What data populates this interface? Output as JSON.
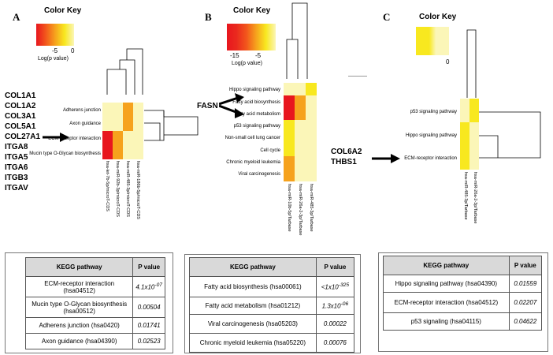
{
  "panels": {
    "a": {
      "letter": "A",
      "color_key": {
        "title": "Color Key",
        "ticks": [
          "-5",
          "0"
        ],
        "axis_label": "Log(p value)"
      },
      "genes": [
        "COL1A1",
        "COL1A2",
        "COL3A1",
        "COL5A1",
        "COL27A1",
        "ITGA8",
        "ITGA5",
        "ITGA6",
        "ITGB3",
        "ITGAV"
      ],
      "row_labels": [
        "Adherens junction",
        "Axon guidance",
        "ECM-receptor interaction",
        "Mucin type O-Glycan biosynthesis"
      ],
      "col_labels": [
        "hsa-let-7b-5p/microT-CDS",
        "hsa-miR-92b-3p/microT-CDS",
        "hsa-miR-485-3p/microT-CDS",
        "hsa-miR-186b-5p/microT-CDS"
      ],
      "table": {
        "headers": [
          "KEGG pathway",
          "P value"
        ],
        "rows": [
          {
            "pathway": "ECM-receptor interaction (hsa04512)",
            "p": "4.1x10",
            "exp": "-07"
          },
          {
            "pathway": "Mucin type O-Glycan biosynthesis (hsa00512)",
            "p": "0.00504",
            "exp": ""
          },
          {
            "pathway": "Adherens junction (hsa0420)",
            "p": "0.01741",
            "exp": ""
          },
          {
            "pathway": "Axon guidance (hsa04390)",
            "p": "0.02523",
            "exp": ""
          }
        ]
      }
    },
    "b": {
      "letter": "B",
      "color_key": {
        "title": "Color Key",
        "ticks": [
          "-15",
          "-5"
        ],
        "axis_label": "Log(p value)"
      },
      "gene": "FASN",
      "row_labels": [
        "Hippo signaling pathway",
        "Fatty acid biosynthesis",
        "Fatty acid metabolism",
        "p53 signaling pathway",
        "Non-small cell lung cancer",
        "Cell cycle",
        "Chronic myeloid leukemia",
        "Viral carcinogenesis"
      ],
      "col_labels": [
        "hsa-miR-10b-5p/Tarbase",
        "hsa-miR-26a-2-3p/Tarbase",
        "hsa-miR-485-3p/Tarbase"
      ],
      "table": {
        "headers": [
          "KEGG pathway",
          "P value"
        ],
        "rows": [
          {
            "pathway": "Fatty acid biosynthesis (hsa00061)",
            "p": "<1x10",
            "exp": "-325"
          },
          {
            "pathway": "Fatty acid metabolism (hsa01212)",
            "p": "1.3x10",
            "exp": "-06"
          },
          {
            "pathway": "Viral carcinogenesis (hsa05203)",
            "p": "0.00022",
            "exp": ""
          },
          {
            "pathway": "Chronic myeloid leukemia (hsa05220)",
            "p": "0.00076",
            "exp": ""
          }
        ]
      }
    },
    "c": {
      "letter": "C",
      "color_key": {
        "title": "Color Key",
        "ticks": [
          "0"
        ],
        "axis_label": ""
      },
      "genes": [
        "COL6A2",
        "THBS1"
      ],
      "row_labels": [
        "p53 signaling pathway",
        "Hippo signaling pathway",
        "ECM-receptor interaction"
      ],
      "col_labels": [
        "hsa-miR-485-3p/Tarbase",
        "hsa-miR-26a-2-3p/Tarbase"
      ],
      "table": {
        "headers": [
          "KEGG pathway",
          "P value"
        ],
        "rows": [
          {
            "pathway": "Hippo signaling pathway (hsa04390)",
            "p": "0.01559",
            "exp": ""
          },
          {
            "pathway": "ECM-receptor interaction (hsa04512)",
            "p": "0.02207",
            "exp": ""
          },
          {
            "pathway": "p53 signaling (hsa04115)",
            "p": "0.04622",
            "exp": ""
          }
        ]
      }
    }
  },
  "colors": {
    "red": "#e8161e",
    "orange_red": "#f2561c",
    "orange": "#f6a21d",
    "yellow": "#f8e81f",
    "pale": "#fbf6b8",
    "header_gray": "#d9d9d9"
  }
}
